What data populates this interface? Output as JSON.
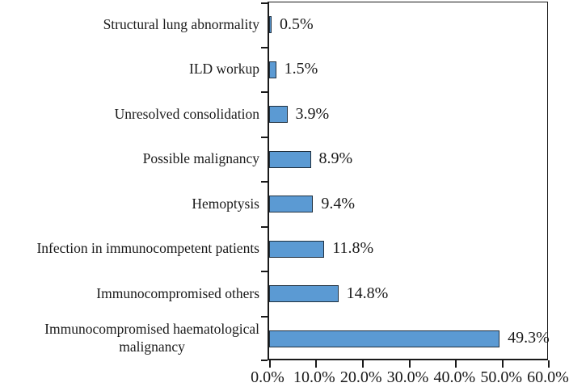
{
  "chart_data": {
    "type": "bar",
    "orientation": "horizontal",
    "title": "",
    "xlabel": "",
    "ylabel": "",
    "categories": [
      "Structural lung abnormality",
      "ILD workup",
      "Unresolved consolidation",
      "Possible malignancy",
      "Hemoptysis",
      "Infection in immunocompetent patients",
      "Immunocompromised others",
      "Immunocompromised haematological\nmalignancy"
    ],
    "values": [
      0.5,
      1.5,
      3.9,
      8.9,
      9.4,
      11.8,
      14.8,
      49.3
    ],
    "data_labels": [
      "0.5%",
      "1.5%",
      "3.9%",
      "8.9%",
      "9.4%",
      "11.8%",
      "14.8%",
      "49.3%"
    ],
    "x_ticks": [
      "0.0%",
      "10.0%",
      "20.0%",
      "30.0%",
      "40.0%",
      "50.0%",
      "60.0%"
    ],
    "x_tick_values": [
      0,
      10,
      20,
      30,
      40,
      50,
      60
    ],
    "xlim": [
      0,
      60
    ],
    "grid": false,
    "legend": false,
    "colors": {
      "bar_fill": "#5B9AD3",
      "bar_border": "#20303f",
      "axis": "#1a1a1a",
      "text": "#1a1a1a",
      "background": "#ffffff"
    }
  }
}
